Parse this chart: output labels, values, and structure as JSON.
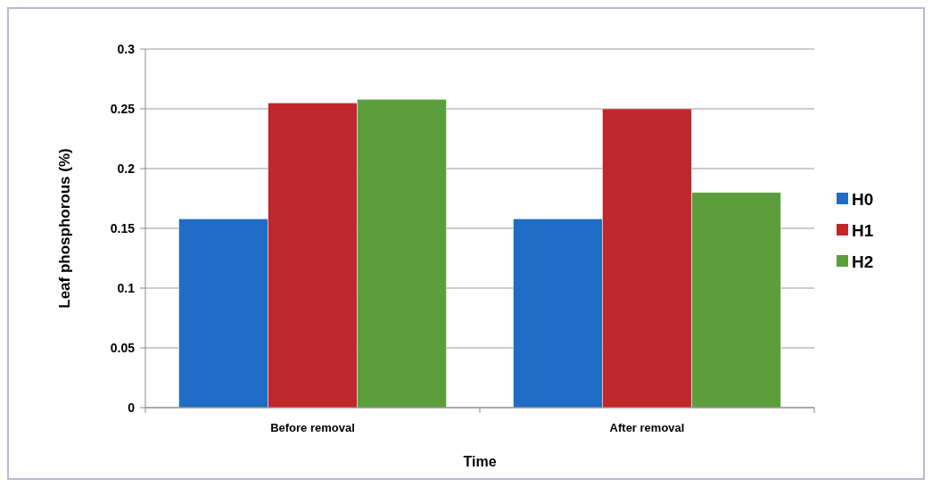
{
  "chart_data": {
    "type": "bar",
    "xlabel": "Time",
    "ylabel": "Leaf phosphorous (%)",
    "categories": [
      "Before removal",
      "After removal"
    ],
    "series": [
      {
        "name": "H0",
        "color": "#1f6cc4",
        "values": [
          0.158,
          0.158
        ]
      },
      {
        "name": "H1",
        "color": "#c0272d",
        "values": [
          0.255,
          0.25
        ]
      },
      {
        "name": "H2",
        "color": "#5c9e3c",
        "values": [
          0.258,
          0.18
        ]
      }
    ],
    "ylim": [
      0,
      0.3
    ],
    "yticks": [
      0,
      0.05,
      0.1,
      0.15,
      0.2,
      0.25,
      0.3
    ],
    "grid": "y",
    "legend": "right"
  }
}
